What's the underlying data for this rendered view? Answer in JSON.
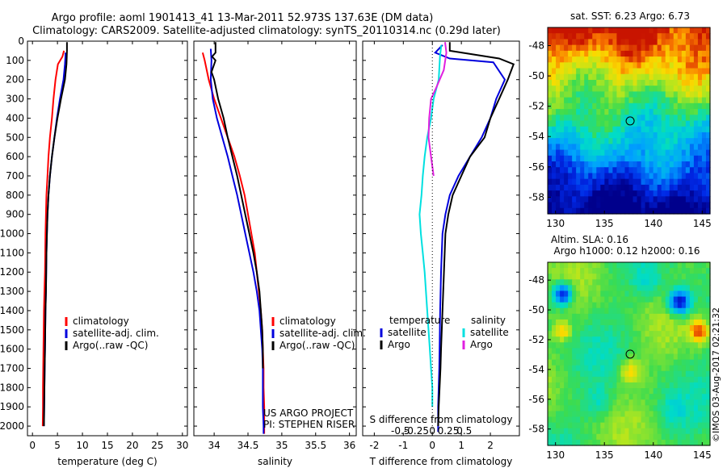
{
  "header": {
    "title_line1": "Argo profile: aoml 1901413_41 13-Mar-2011 52.973S 137.63E (DM data)",
    "title_line2": "Climatology: CARS2009. Satellite-adjusted climatology: synTS_20110314.nc (0.29d later)"
  },
  "colors": {
    "climatology": "#ff0000",
    "satellite": "#0000dd",
    "argo": "#000000",
    "salinity_satellite": "#00e0e0",
    "salinity_argo": "#e020e0"
  },
  "chart_data": [
    {
      "id": "temperature",
      "type": "line",
      "xlabel": "temperature (deg C)",
      "ylim": [
        2050,
        0
      ],
      "yticks": [
        0,
        100,
        200,
        300,
        400,
        500,
        600,
        700,
        800,
        900,
        1000,
        1100,
        1200,
        1300,
        1400,
        1500,
        1600,
        1700,
        1800,
        1900,
        2000
      ],
      "xlim": [
        -1,
        31
      ],
      "xticks": [
        0,
        5,
        10,
        15,
        20,
        25,
        30
      ],
      "legend": [
        "climatology",
        "satellite-adj. clim.",
        "Argo(..raw -QC)"
      ],
      "series": [
        {
          "name": "climatology",
          "color": "#ff0000",
          "x": [
            6.3,
            6.0,
            5.1,
            4.6,
            4.2,
            3.9,
            3.5,
            3.2,
            3.0,
            2.8,
            2.7,
            2.6,
            2.55,
            2.5,
            2.4,
            2.3,
            2.25,
            2.2,
            2.15,
            2.1,
            2.1,
            2.05
          ],
          "y": [
            50,
            80,
            120,
            200,
            300,
            400,
            500,
            600,
            700,
            800,
            900,
            1000,
            1100,
            1200,
            1300,
            1400,
            1500,
            1600,
            1700,
            1800,
            1900,
            2000
          ]
        },
        {
          "name": "satellite-adj. clim.",
          "color": "#0000dd",
          "x": [
            6.6,
            6.6,
            6.5,
            6.2,
            5.5,
            4.9,
            4.4,
            3.9,
            3.5,
            3.2,
            3.0,
            2.9,
            2.8,
            2.75,
            2.7,
            2.6,
            2.55,
            2.5,
            2.45,
            2.4,
            2.35,
            2.3
          ],
          "y": [
            60,
            80,
            120,
            200,
            300,
            400,
            500,
            600,
            700,
            800,
            900,
            1000,
            1100,
            1200,
            1300,
            1400,
            1500,
            1600,
            1700,
            1800,
            1900,
            2000
          ]
        },
        {
          "name": "Argo(..raw -QC)",
          "color": "#000000",
          "x": [
            6.9,
            6.9,
            6.8,
            6.5,
            5.7,
            5.0,
            4.4,
            3.9,
            3.5,
            3.2,
            3.0,
            2.9,
            2.8,
            2.75,
            2.7,
            2.6,
            2.55,
            2.5,
            2.45,
            2.4,
            2.35,
            2.3
          ],
          "y": [
            5,
            50,
            120,
            200,
            300,
            400,
            500,
            600,
            700,
            800,
            900,
            1000,
            1100,
            1200,
            1300,
            1400,
            1500,
            1600,
            1700,
            1800,
            1900,
            2000
          ]
        }
      ]
    },
    {
      "id": "salinity",
      "type": "line",
      "xlabel": "salinity",
      "ylim": [
        2050,
        0
      ],
      "xlim": [
        33.7,
        36.1
      ],
      "xticks": [
        34,
        34.5,
        35,
        35.5,
        36
      ],
      "xticklabels": [
        "34",
        "34.5",
        "35",
        "35.5",
        "36"
      ],
      "legend": [
        "climatology",
        "satellite-adj. clim.",
        "Argo(..raw -QC)"
      ],
      "annotation": [
        "US ARGO PROJECT",
        "PI: STEPHEN RISER"
      ],
      "series": [
        {
          "name": "climatology",
          "color": "#ff0000",
          "x": [
            33.83,
            33.86,
            33.92,
            34.0,
            34.1,
            34.2,
            34.3,
            34.38,
            34.45,
            34.5,
            34.55,
            34.6,
            34.63,
            34.66,
            34.69,
            34.71,
            34.72,
            34.73,
            34.73,
            34.74,
            34.74,
            34.74
          ],
          "y": [
            60,
            100,
            200,
            300,
            400,
            500,
            600,
            700,
            800,
            900,
            1000,
            1100,
            1200,
            1300,
            1400,
            1500,
            1600,
            1700,
            1800,
            1900,
            2000,
            2040
          ]
        },
        {
          "name": "satellite-adj. clim.",
          "color": "#0000dd",
          "x": [
            33.95,
            33.96,
            33.95,
            33.98,
            34.04,
            34.12,
            34.2,
            34.27,
            34.34,
            34.4,
            34.46,
            34.52,
            34.58,
            34.63,
            34.67,
            34.69,
            34.71,
            34.72,
            34.72,
            34.72,
            34.73,
            34.73
          ],
          "y": [
            40,
            100,
            200,
            300,
            400,
            500,
            600,
            700,
            800,
            900,
            1000,
            1100,
            1200,
            1300,
            1400,
            1500,
            1600,
            1700,
            1800,
            1900,
            2000,
            2040
          ]
        },
        {
          "name": "Argo(..raw -QC)",
          "color": "#000000",
          "x": [
            34.02,
            34.02,
            33.97,
            34.02,
            33.96,
            34.0,
            34.06,
            34.14,
            34.2,
            34.27,
            34.34,
            34.4,
            34.46,
            34.52,
            34.58,
            34.63,
            34.67,
            34.69,
            34.71,
            34.72,
            34.72
          ],
          "y": [
            5,
            60,
            80,
            100,
            160,
            200,
            300,
            400,
            500,
            600,
            700,
            800,
            900,
            1000,
            1100,
            1200,
            1300,
            1400,
            1500,
            1600,
            1700
          ]
        }
      ]
    },
    {
      "id": "difference",
      "type": "line",
      "xlabel": "T difference from climatology",
      "xlabel2": "S difference from climatology",
      "ylim": [
        2050,
        0
      ],
      "xlim": [
        -2.4,
        3.0
      ],
      "xticks": [
        -2,
        -1,
        0,
        1,
        2
      ],
      "xticks2": [
        -0.5,
        -0.25,
        0,
        0.25,
        0.5
      ],
      "xticklabels2": [
        "-0.5",
        "-0.25",
        "0",
        "0.25",
        "0.5"
      ],
      "legend_temperature": {
        "heading": "temperature",
        "items": [
          "satellite",
          "Argo"
        ]
      },
      "legend_salinity": {
        "heading": "salinity",
        "items": [
          "satellite",
          "Argo"
        ]
      },
      "series": [
        {
          "name": "T satellite",
          "color": "#0000dd",
          "x": [
            0.35,
            0.1,
            0.6,
            2.1,
            2.5,
            2.2,
            2.0,
            1.7,
            1.3,
            0.9,
            0.6,
            0.45,
            0.35,
            0.3,
            0.27,
            0.25,
            0.24,
            0.22,
            0.2,
            0.2,
            0.2
          ],
          "y": [
            20,
            60,
            90,
            110,
            200,
            300,
            400,
            500,
            600,
            700,
            800,
            900,
            1000,
            1200,
            1400,
            1600,
            1700,
            1800,
            1900,
            2000,
            2030
          ]
        },
        {
          "name": "T Argo",
          "color": "#000000",
          "x": [
            0.6,
            0.6,
            2.3,
            2.8,
            2.6,
            2.3,
            2.0,
            1.8,
            1.3,
            1.0,
            0.7,
            0.55,
            0.45,
            0.4,
            0.35,
            0.3,
            0.28,
            0.25,
            0.22,
            0.2
          ],
          "y": [
            5,
            50,
            90,
            120,
            200,
            300,
            400,
            500,
            600,
            700,
            800,
            900,
            1000,
            1200,
            1400,
            1600,
            1700,
            1800,
            1900,
            2000
          ]
        },
        {
          "name": "S satellite",
          "color": "#00e0e0",
          "x": [
            0.14,
            0.12,
            0.1,
            0.02,
            -0.02,
            -0.08,
            -0.12,
            -0.15,
            -0.17,
            -0.2,
            -0.18,
            -0.15,
            -0.12,
            -0.1,
            -0.08,
            -0.06,
            -0.04,
            -0.02,
            0.0,
            0.0
          ],
          "y": [
            20,
            80,
            200,
            300,
            400,
            500,
            600,
            700,
            800,
            900,
            1000,
            1100,
            1200,
            1300,
            1400,
            1500,
            1600,
            1700,
            1800,
            1900
          ]
        },
        {
          "name": "S Argo",
          "color": "#e020e0",
          "x": [
            0.2,
            0.22,
            0.18,
            0.05,
            -0.02,
            -0.05,
            -0.06,
            -0.02,
            0.0,
            0.02
          ],
          "y": [
            5,
            60,
            150,
            250,
            300,
            400,
            500,
            600,
            650,
            700
          ]
        }
      ]
    },
    {
      "id": "sst_map",
      "type": "heatmap",
      "title": "sat. SST: 6.23 Argo: 6.73",
      "xlim": [
        129.2,
        145.8
      ],
      "ylim": [
        -59.1,
        -46.8
      ],
      "xticks": [
        130,
        135,
        140,
        145
      ],
      "yticks": [
        -48,
        -50,
        -52,
        -54,
        -56,
        -58
      ],
      "marker": {
        "lon": 137.63,
        "lat": -52.97
      }
    },
    {
      "id": "sla_map",
      "type": "heatmap",
      "title": "Altim. SLA: 0.16",
      "subtitle": "Argo h1000: 0.12 h2000: 0.16",
      "xlim": [
        129.2,
        145.8
      ],
      "ylim": [
        -59.1,
        -46.8
      ],
      "xticks": [
        130,
        135,
        140,
        145
      ],
      "yticks": [
        -48,
        -50,
        -52,
        -54,
        -56,
        -58
      ],
      "marker": {
        "lon": 137.63,
        "lat": -52.97
      }
    }
  ],
  "footer": {
    "stamp": "©IMOS 03-Aug-2017 02:21:32"
  }
}
